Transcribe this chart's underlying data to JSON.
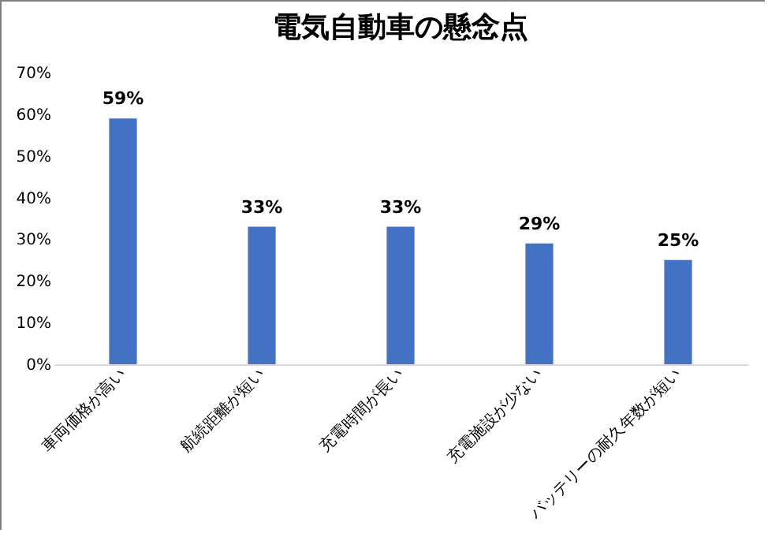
{
  "chart_data": {
    "type": "bar",
    "title": "電気自動車の懸念点",
    "categories": [
      "車両価格が高い",
      "航続距離が短い",
      "充電時間が長い",
      "充電施設が少ない",
      "バッテリーの耐久年数が短い"
    ],
    "values": [
      59,
      33,
      33,
      29,
      25
    ],
    "value_labels": [
      "59%",
      "33%",
      "33%",
      "29%",
      "25%"
    ],
    "color": "#4472c4",
    "ylim": [
      0,
      70
    ],
    "yticks": [
      {
        "value": 0,
        "label": "0%"
      },
      {
        "value": 10,
        "label": "10%"
      },
      {
        "value": 20,
        "label": "20%"
      },
      {
        "value": 30,
        "label": "30%"
      },
      {
        "value": 40,
        "label": "40%"
      },
      {
        "value": 50,
        "label": "50%"
      },
      {
        "value": 60,
        "label": "60%"
      },
      {
        "value": 70,
        "label": "70%"
      }
    ],
    "grid": false
  }
}
